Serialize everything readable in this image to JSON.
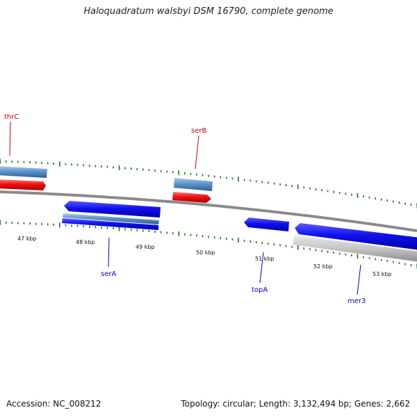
{
  "title": "Haloquadratum walsbyi DSM 16790, complete genome",
  "footer": {
    "accession": "Accession: NC_008212",
    "summary": "Topology: circular; Length: 3,132,494 bp; Genes: 2,662"
  },
  "colors": {
    "backbone": "#808080",
    "tick": "#1a7a1a",
    "forward_gene": "#3d7fc0",
    "forward_cds": "#e11",
    "reverse_gene": "#1515e8",
    "reverse_other": "#bbbbbb",
    "label_top": "#cc0000",
    "label_bottom": "#0000cc"
  },
  "scale": {
    "unit": "kbp",
    "labels": [
      "47 kbp",
      "48 kbp",
      "49 kbp",
      "50 kbp",
      "51 kbp",
      "52 kbp",
      "53 kbp"
    ]
  },
  "gene_labels": {
    "top": [
      "thrC",
      "serB"
    ],
    "bottom": [
      "serA",
      "topA",
      "mer3"
    ]
  }
}
